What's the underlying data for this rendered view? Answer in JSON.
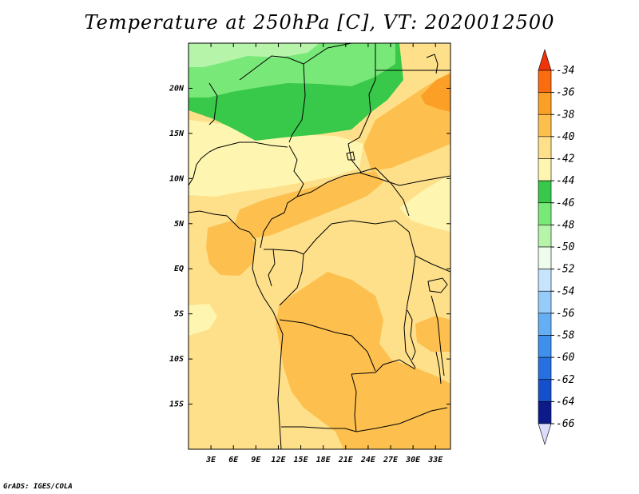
{
  "title": "Temperature at 250hPa [C], VT: 2020012500",
  "credit": "GrADS: IGES/COLA",
  "map": {
    "region": "Central Africa",
    "lon_range": [
      0,
      35
    ],
    "lat_range": [
      -20,
      25
    ],
    "lon_ticks": [
      "3E",
      "6E",
      "9E",
      "12E",
      "15E",
      "18E",
      "21E",
      "24E",
      "27E",
      "30E",
      "33E"
    ],
    "lat_ticks": [
      "20N",
      "15N",
      "10N",
      "5N",
      "EQ",
      "5S",
      "10S",
      "15S"
    ],
    "colors": {
      "c-40": "#fee08b",
      "c-42": "#fef6b0",
      "c-38": "#fdc04f",
      "c-36": "#fb9f26",
      "c-44": "#38c84a",
      "c-46": "#78e878",
      "c-48": "#b6f4aa",
      "border": "#000000"
    }
  },
  "colorbar": {
    "labels": [
      "-34",
      "-36",
      "-38",
      "-40",
      "-42",
      "-44",
      "-46",
      "-48",
      "-50",
      "-52",
      "-54",
      "-56",
      "-58",
      "-60",
      "-62",
      "-64",
      "-66"
    ],
    "colors": [
      "#f0340a",
      "#fb6b10",
      "#fb9f26",
      "#fdc04f",
      "#fee08b",
      "#fef6b0",
      "#38c84a",
      "#78e878",
      "#b6f4aa",
      "#eefcee",
      "#c6e4fc",
      "#96ccfa",
      "#64aef4",
      "#3e90ec",
      "#2670e2",
      "#1450cc",
      "#0c1a8a",
      "#dcdcfa"
    ]
  }
}
